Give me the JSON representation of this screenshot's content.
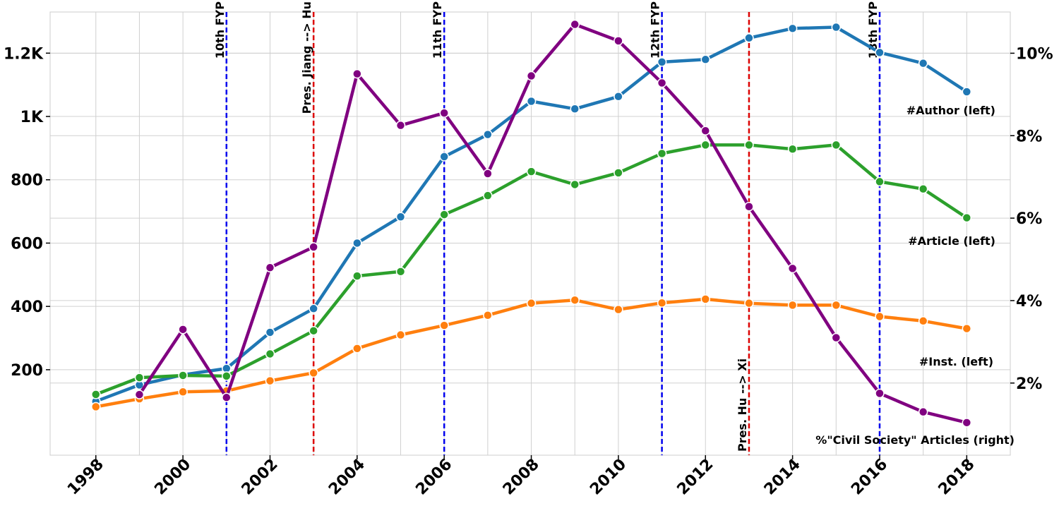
{
  "chart_data": {
    "type": "line",
    "x": [
      1998,
      1999,
      2000,
      2001,
      2002,
      2003,
      2004,
      2005,
      2006,
      2007,
      2008,
      2009,
      2010,
      2011,
      2012,
      2013,
      2014,
      2015,
      2016,
      2017,
      2018
    ],
    "xlim": [
      1996.95,
      2019.0
    ],
    "ylim_left": [
      -70,
      1330
    ],
    "ylim_right": [
      0.25,
      11.0
    ],
    "x_ticks": [
      1998,
      2000,
      2002,
      2004,
      2006,
      2008,
      2010,
      2012,
      2014,
      2016,
      2018
    ],
    "x_tick_labels": [
      "1998",
      "2000",
      "2002",
      "2004",
      "2006",
      "2008",
      "2010",
      "2012",
      "2014",
      "2016",
      "2018"
    ],
    "y_left_ticks": [
      200,
      400,
      600,
      800,
      1000,
      1200
    ],
    "y_left_tick_labels": [
      "200",
      "400",
      "600",
      "800",
      "1K",
      "1.2K"
    ],
    "y_right_ticks": [
      2,
      4,
      6,
      8,
      10
    ],
    "y_right_tick_labels": [
      "2%",
      "4%",
      "6%",
      "8%",
      "10%"
    ],
    "grid": true,
    "series": [
      {
        "name": "#Author (left)",
        "axis": "left",
        "color": "#1f77b4",
        "values": [
          100,
          152,
          184,
          204,
          318,
          393,
          600,
          683,
          873,
          943,
          1048,
          1024,
          1063,
          1172,
          1180,
          1248,
          1278,
          1282,
          1202,
          1168,
          1078
        ]
      },
      {
        "name": "#Article (left)",
        "axis": "left",
        "color": "#2ca02c",
        "values": [
          122,
          175,
          182,
          180,
          250,
          323,
          496,
          510,
          690,
          750,
          826,
          785,
          822,
          883,
          910,
          910,
          897,
          910,
          794,
          771,
          680
        ]
      },
      {
        "name": "#Inst. (left)",
        "axis": "left",
        "color": "#ff7f0e",
        "values": [
          83,
          108,
          130,
          133,
          165,
          190,
          267,
          310,
          340,
          372,
          410,
          420,
          390,
          411,
          423,
          410,
          404,
          404,
          368,
          354,
          330
        ]
      },
      {
        "name": "%\"Civil Society\" Articles (right)",
        "axis": "right",
        "color": "#800080",
        "values": [
          null,
          1.72,
          3.3,
          1.65,
          4.8,
          5.3,
          9.5,
          8.25,
          8.55,
          7.08,
          9.45,
          10.7,
          10.3,
          9.28,
          8.12,
          6.28,
          4.78,
          3.1,
          1.75,
          1.3,
          1.04
        ]
      }
    ],
    "vlines": [
      {
        "x": 2001,
        "label": "10th FYP",
        "color": "#0000ee"
      },
      {
        "x": 2003,
        "label": "Pres. Jiang --> Hu",
        "color": "#dd0000"
      },
      {
        "x": 2006,
        "label": "11th FYP",
        "color": "#0000ee"
      },
      {
        "x": 2011,
        "label": "12th FYP",
        "color": "#0000ee"
      },
      {
        "x": 2013,
        "label": "Pres. Hu --> Xi",
        "color": "#dd0000"
      },
      {
        "x": 2016,
        "label": "13th FYP",
        "color": "#0000ee"
      }
    ]
  }
}
